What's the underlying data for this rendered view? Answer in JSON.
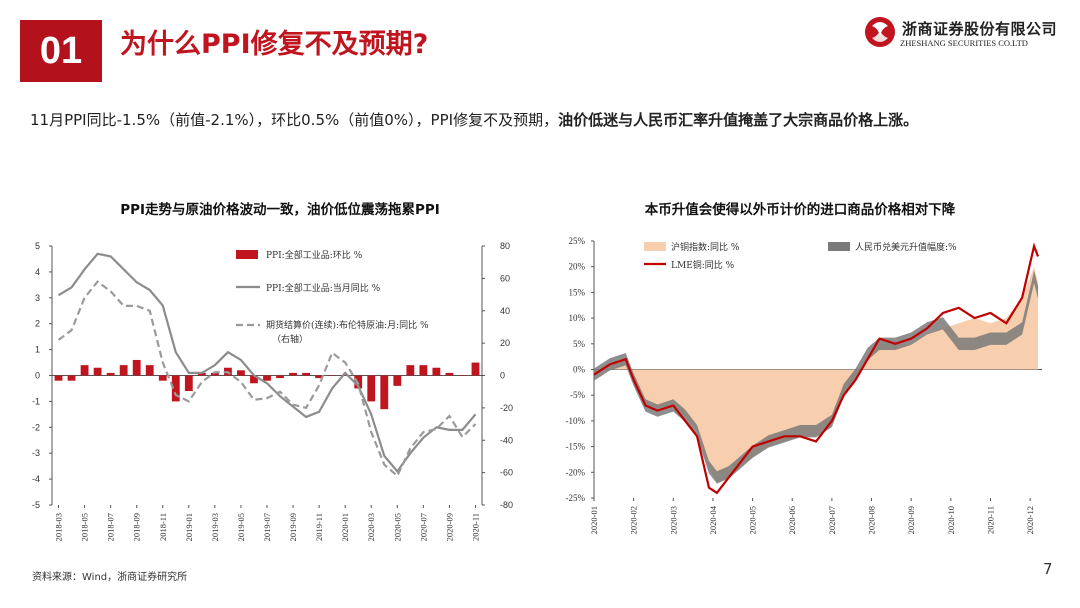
{
  "header": {
    "section_number": "01",
    "title": "为什么PPI修复不及预期?",
    "logo_cn": "浙商证券股份有限公司",
    "logo_en": "ZHESHANG SECURITIES CO.LTD"
  },
  "summary": {
    "normal_text": "11月PPI同比-1.5%（前值-2.1%），环比0.5%（前值0%），PPI修复不及预期，",
    "bold_text": "油价低迷与人民币汇率升值掩盖了大宗商品价格上涨。"
  },
  "footer": {
    "source": "资料来源：Wind，浙商证券研究所",
    "page_number": "7"
  },
  "colors": {
    "brand_red": "#b3121c",
    "bar_red": "#c0141e",
    "ppi_yoy_gray": "#8c8c8c",
    "oil_dashed_gray": "#9a9a9a",
    "index_fill": "#f8cfae",
    "rmb_gray": "#7a7a7a",
    "lme_red": "#c00000"
  },
  "chart_data": [
    {
      "type": "bar+line",
      "title": "PPI走势与原油价格波动一致，油价低位震荡拖累PPI",
      "categories": [
        "2018-03",
        "2018-04",
        "2018-05",
        "2018-06",
        "2018-07",
        "2018-08",
        "2018-09",
        "2018-10",
        "2018-11",
        "2018-12",
        "2019-01",
        "2019-02",
        "2019-03",
        "2019-04",
        "2019-05",
        "2019-06",
        "2019-07",
        "2019-08",
        "2019-09",
        "2019-10",
        "2019-11",
        "2019-12",
        "2020-01",
        "2020-02",
        "2020-03",
        "2020-04",
        "2020-05",
        "2020-06",
        "2020-07",
        "2020-08",
        "2020-09",
        "2020-10",
        "2020-11"
      ],
      "x_tick_labels": [
        "2018-03",
        "2018-05",
        "2018-07",
        "2018-09",
        "2018-11",
        "2019-01",
        "2019-03",
        "2019-05",
        "2019-07",
        "2019-09",
        "2019-11",
        "2020-01",
        "2020-03",
        "2020-05",
        "2020-07",
        "2020-09",
        "2020-11"
      ],
      "ylim_left": [
        -5,
        5
      ],
      "ylim_right": [
        -80,
        80
      ],
      "left_ticks": [
        5,
        4,
        3,
        2,
        1,
        0,
        -1,
        -2,
        -3,
        -4,
        -5
      ],
      "right_ticks": [
        80,
        60,
        40,
        20,
        0,
        -20,
        -40,
        -60,
        -80
      ],
      "series": [
        {
          "name": "PPI:全部工业品:环比 %",
          "type": "bar",
          "axis": "left",
          "values": [
            -0.2,
            -0.2,
            0.4,
            0.3,
            0.1,
            0.4,
            0.6,
            0.4,
            -0.2,
            -1.0,
            -0.6,
            0.1,
            0.1,
            0.3,
            0.2,
            -0.3,
            -0.2,
            -0.1,
            0.1,
            0.1,
            -0.1,
            0.0,
            0.0,
            -0.5,
            -1.0,
            -1.3,
            -0.4,
            0.4,
            0.4,
            0.3,
            0.1,
            0.0,
            0.5
          ]
        },
        {
          "name": "PPI:全部工业品:当月同比 %",
          "type": "line",
          "axis": "left",
          "values": [
            3.1,
            3.4,
            4.1,
            4.7,
            4.6,
            4.1,
            3.6,
            3.3,
            2.7,
            0.9,
            0.1,
            0.1,
            0.4,
            0.9,
            0.6,
            0.0,
            -0.3,
            -0.8,
            -1.2,
            -1.6,
            -1.4,
            -0.5,
            0.1,
            -0.4,
            -1.5,
            -3.1,
            -3.7,
            -3.0,
            -2.4,
            -2.0,
            -2.1,
            -2.1,
            -1.5
          ]
        },
        {
          "name": "期货结算价(连续):布伦特原油:月:同比 %",
          "type": "line",
          "axis": "right",
          "dashed": true,
          "note": "（右轴）",
          "values": [
            22,
            28,
            48,
            58,
            52,
            43,
            43,
            40,
            8,
            -12,
            -16,
            -4,
            2,
            2,
            -4,
            -15,
            -14,
            -10,
            -18,
            -20,
            -6,
            14,
            8,
            -5,
            -35,
            -55,
            -62,
            -45,
            -35,
            -33,
            -25,
            -38,
            -30
          ]
        }
      ]
    },
    {
      "type": "area+line",
      "title": "本币升值会使得以外币计价的进口商品价格相对下降",
      "x_tick_labels": [
        "2020-01",
        "2020-02",
        "2020-03",
        "2020-04",
        "2020-05",
        "2020-06",
        "2020-07",
        "2020-08",
        "2020-09",
        "2020-10",
        "2020-11",
        "2020-12"
      ],
      "y_tick_labels": [
        "25%",
        "20%",
        "15%",
        "10%",
        "5%",
        "0%",
        "-5%",
        "-10%",
        "-15%",
        "-20%",
        "-25%"
      ],
      "ylim": [
        -25,
        25
      ],
      "xlim_months": [
        0,
        11.3
      ],
      "series": [
        {
          "name": "沪铜指数:同比 %",
          "type": "area",
          "x": [
            0,
            0.4,
            0.8,
            1.0,
            1.3,
            1.6,
            2.0,
            2.3,
            2.6,
            2.9,
            3.1,
            3.4,
            3.7,
            4.0,
            4.4,
            4.8,
            5.2,
            5.6,
            6.0,
            6.3,
            6.6,
            6.9,
            7.2,
            7.6,
            8.0,
            8.4,
            8.8,
            9.2,
            9.6,
            10.0,
            10.4,
            10.8,
            11.1,
            11.2
          ],
          "y": [
            -1,
            1,
            2,
            -2,
            -7,
            -8,
            -7,
            -9,
            -12,
            -19,
            -22,
            -21,
            -19,
            -17,
            -15,
            -14,
            -13,
            -13,
            -10,
            -5,
            -2,
            2,
            5,
            5,
            5,
            7,
            8,
            9,
            10,
            9,
            10,
            14,
            20,
            17
          ]
        },
        {
          "name": "人民币兑美元升值幅度:%",
          "type": "area",
          "x": [
            0,
            0.4,
            0.8,
            1.0,
            1.3,
            1.6,
            2.0,
            2.3,
            2.6,
            2.9,
            3.1,
            3.4,
            3.7,
            4.0,
            4.4,
            4.8,
            5.2,
            5.6,
            6.0,
            6.3,
            6.6,
            6.9,
            7.2,
            7.6,
            8.0,
            8.4,
            8.8,
            9.2,
            9.6,
            10.0,
            10.4,
            10.8,
            11.1,
            11.2
          ],
          "y": [
            -1,
            1,
            2,
            -2,
            -7,
            -8,
            -7,
            -9,
            -12,
            -19,
            -21,
            -20,
            -18,
            -16,
            -14,
            -13,
            -12,
            -12,
            -10,
            -4,
            -1,
            3,
            5,
            5,
            6,
            8,
            9,
            5,
            5,
            6,
            6,
            8,
            18,
            15
          ]
        },
        {
          "name": "LME铜:同比 %",
          "type": "line",
          "x": [
            0,
            0.4,
            0.8,
            1.0,
            1.3,
            1.6,
            2.0,
            2.3,
            2.6,
            2.9,
            3.1,
            3.4,
            3.7,
            4.0,
            4.4,
            4.8,
            5.2,
            5.6,
            6.0,
            6.3,
            6.6,
            6.9,
            7.2,
            7.6,
            8.0,
            8.4,
            8.8,
            9.2,
            9.6,
            10.0,
            10.4,
            10.8,
            11.1,
            11.2
          ],
          "y": [
            -1,
            1,
            2,
            -2,
            -7,
            -8,
            -7,
            -10,
            -13,
            -23,
            -24,
            -21,
            -18,
            -15,
            -14,
            -13,
            -13,
            -14,
            -10,
            -5,
            -2,
            2,
            6,
            5,
            6,
            8,
            11,
            12,
            10,
            11,
            9,
            14,
            24,
            22
          ]
        }
      ]
    }
  ]
}
